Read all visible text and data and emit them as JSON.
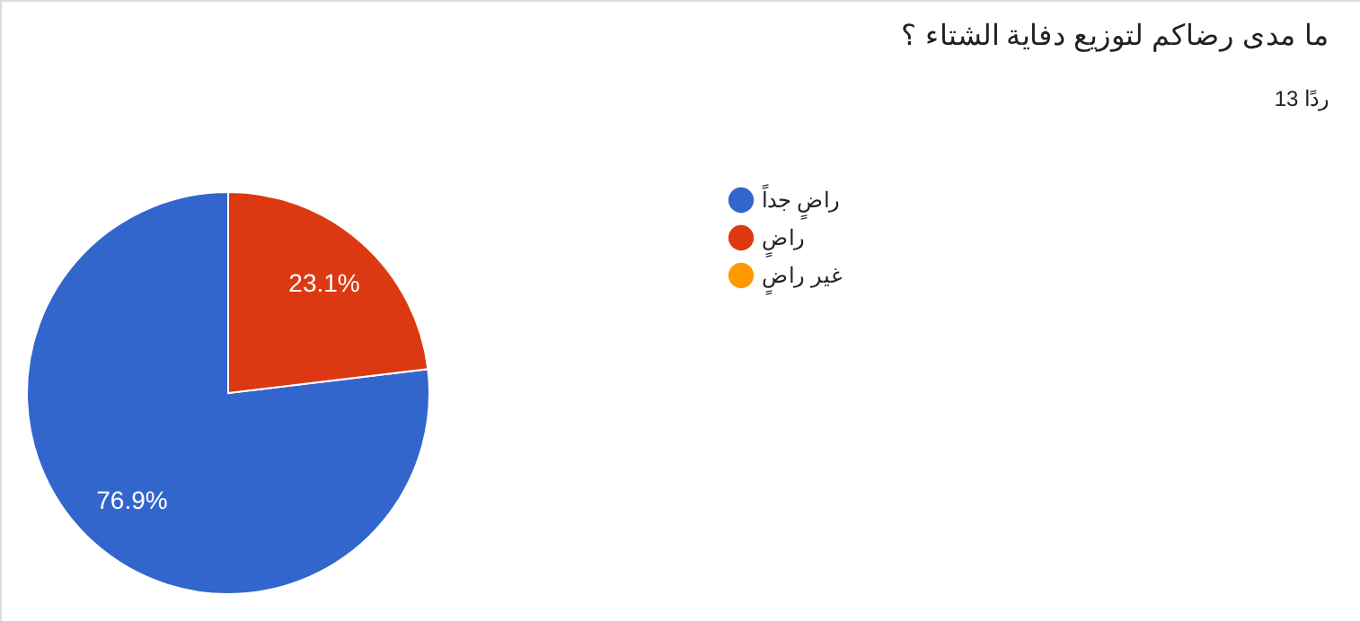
{
  "chart_data": {
    "type": "pie",
    "title": "ما مدى رضاكم لتوزيع دفاية الشتاء ؟",
    "subtitle": "13 ردًا",
    "categories": [
      "راضٍ جداً",
      "راضٍ",
      "غير راضٍ"
    ],
    "values": [
      76.9,
      23.1,
      0
    ],
    "colors": [
      "#3366cc",
      "#dc3912",
      "#ff9900"
    ],
    "value_labels": [
      "76.9%",
      "23.1%",
      null
    ],
    "legend": "right"
  }
}
